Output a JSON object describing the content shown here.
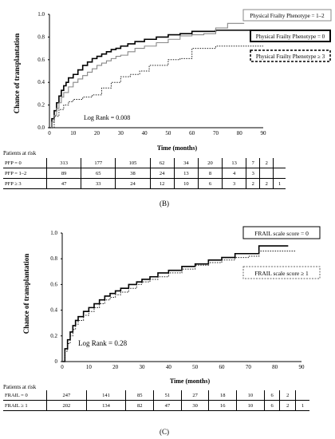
{
  "chart_data": [
    {
      "type": "line",
      "ylabel": "Chance of transplantation",
      "xlabel": "Time (months)",
      "ylim": [
        0,
        1.0
      ],
      "xlim": [
        0,
        90
      ],
      "xticks": [
        0,
        10,
        20,
        30,
        40,
        50,
        60,
        70,
        80,
        90
      ],
      "yticks": [
        "0.0",
        "0.2",
        "0.4",
        "0.6",
        "0.8",
        "1.0"
      ],
      "annotation": "Log Rank = 0.008",
      "legend": [
        "Physical Frailty Phenotype = 1–2",
        "Physical Frailty Phenotype = 0",
        "Physical Frailty Phenotype ≥ 3"
      ],
      "series": [
        {
          "name": "Physical Frailty Phenotype = 0",
          "style": "solid-thick",
          "x": [
            0,
            1,
            2,
            3,
            4,
            5,
            6,
            7,
            8,
            10,
            12,
            14,
            16,
            18,
            20,
            22,
            24,
            26,
            28,
            30,
            33,
            36,
            40,
            45,
            50,
            55,
            60,
            70,
            80,
            88
          ],
          "y": [
            0,
            0.08,
            0.15,
            0.22,
            0.28,
            0.33,
            0.37,
            0.4,
            0.44,
            0.47,
            0.51,
            0.55,
            0.58,
            0.61,
            0.63,
            0.65,
            0.67,
            0.69,
            0.7,
            0.72,
            0.74,
            0.76,
            0.78,
            0.8,
            0.82,
            0.83,
            0.85,
            0.86,
            0.86,
            0.86
          ]
        },
        {
          "name": "Physical Frailty Phenotype = 1–2",
          "style": "solid-gray",
          "x": [
            0,
            1,
            2,
            3,
            4,
            5,
            6,
            8,
            10,
            12,
            14,
            16,
            18,
            20,
            22,
            24,
            26,
            28,
            30,
            33,
            36,
            40,
            45,
            50,
            55,
            60,
            65,
            70,
            75,
            82
          ],
          "y": [
            0,
            0.05,
            0.11,
            0.17,
            0.22,
            0.27,
            0.31,
            0.36,
            0.4,
            0.43,
            0.46,
            0.49,
            0.52,
            0.55,
            0.57,
            0.59,
            0.61,
            0.63,
            0.64,
            0.67,
            0.7,
            0.72,
            0.75,
            0.78,
            0.81,
            0.82,
            0.83,
            0.88,
            0.92,
            0.92
          ]
        },
        {
          "name": "Physical Frailty Phenotype ≥ 3",
          "style": "dotted",
          "x": [
            0,
            2,
            4,
            6,
            8,
            10,
            14,
            18,
            22,
            26,
            30,
            34,
            38,
            42,
            46,
            50,
            55,
            60,
            70,
            90
          ],
          "y": [
            0,
            0.1,
            0.16,
            0.2,
            0.23,
            0.25,
            0.27,
            0.29,
            0.35,
            0.4,
            0.45,
            0.47,
            0.5,
            0.55,
            0.55,
            0.6,
            0.61,
            0.7,
            0.72,
            0.72
          ]
        }
      ],
      "risk_table": {
        "title": "Patients at risk",
        "rows": [
          {
            "label": "PFP = 0",
            "values": [
              "313",
              "177",
              "105",
              "62",
              "34",
              "20",
              "13",
              "7",
              "2",
              ""
            ]
          },
          {
            "label": "PFP = 1–2",
            "values": [
              "89",
              "65",
              "38",
              "24",
              "13",
              "8",
              "4",
              "3",
              "",
              ""
            ]
          },
          {
            "label": "PFP ≥ 3",
            "values": [
              "47",
              "33",
              "24",
              "12",
              "10",
              "6",
              "3",
              "2",
              "2",
              "1"
            ]
          }
        ]
      },
      "panel_label": "(B)"
    },
    {
      "type": "line",
      "ylabel": "Chance of transplantation",
      "xlabel": "Time (months)",
      "ylim": [
        0,
        1.0
      ],
      "xlim": [
        0,
        90
      ],
      "xticks": [
        0,
        10,
        20,
        30,
        40,
        50,
        60,
        70,
        80,
        90
      ],
      "yticks": [
        "0",
        "0.2",
        "0.4",
        "0.6",
        "0.8",
        "1.0"
      ],
      "annotation": "Log Rank = 0.28",
      "legend": [
        "FRAIL scale score = 0",
        "FRAIL scale score ≥ 1"
      ],
      "series": [
        {
          "name": "FRAIL scale score = 0",
          "style": "solid-thick",
          "x": [
            0,
            1,
            2,
            3,
            4,
            5,
            6,
            8,
            10,
            12,
            14,
            16,
            18,
            20,
            22,
            25,
            28,
            30,
            33,
            36,
            40,
            45,
            50,
            55,
            60,
            65,
            70,
            74,
            80,
            85
          ],
          "y": [
            0,
            0.1,
            0.17,
            0.23,
            0.28,
            0.32,
            0.35,
            0.39,
            0.42,
            0.45,
            0.48,
            0.51,
            0.53,
            0.55,
            0.57,
            0.6,
            0.62,
            0.64,
            0.66,
            0.69,
            0.71,
            0.74,
            0.76,
            0.79,
            0.81,
            0.84,
            0.84,
            0.9,
            0.9,
            0.9
          ]
        },
        {
          "name": "FRAIL scale score ≥ 1",
          "style": "dotted",
          "x": [
            0,
            1,
            2,
            3,
            4,
            5,
            6,
            8,
            10,
            12,
            14,
            16,
            18,
            20,
            22,
            25,
            28,
            30,
            33,
            36,
            40,
            45,
            50,
            55,
            60,
            65,
            70,
            74,
            80,
            88
          ],
          "y": [
            0,
            0.08,
            0.14,
            0.2,
            0.25,
            0.29,
            0.32,
            0.36,
            0.39,
            0.42,
            0.45,
            0.48,
            0.5,
            0.52,
            0.54,
            0.57,
            0.6,
            0.62,
            0.64,
            0.66,
            0.69,
            0.72,
            0.75,
            0.77,
            0.79,
            0.81,
            0.82,
            0.86,
            0.86,
            0.86
          ]
        }
      ],
      "risk_table": {
        "title": "Patients at risk",
        "rows": [
          {
            "label": "FRAIL = 0",
            "values": [
              "247",
              "141",
              "85",
              "51",
              "27",
              "18",
              "10",
              "6",
              "2",
              ""
            ]
          },
          {
            "label": "FRAIL ≥ 1",
            "values": [
              "202",
              "134",
              "82",
              "47",
              "30",
              "16",
              "10",
              "6",
              "2",
              "1"
            ]
          }
        ]
      },
      "panel_label": "(C)"
    }
  ]
}
